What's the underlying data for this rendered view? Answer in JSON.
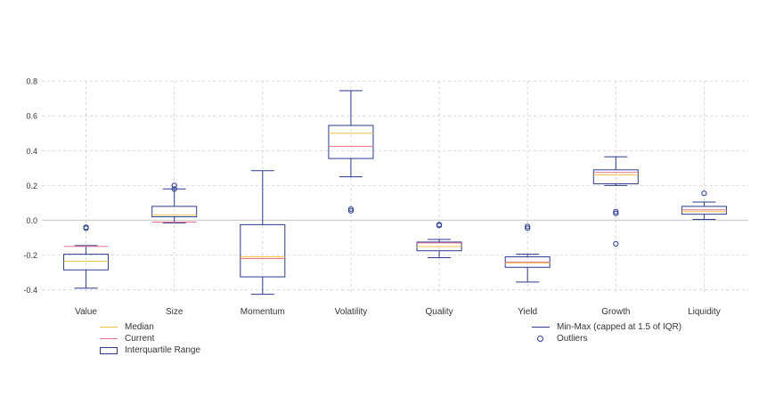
{
  "chart_data": {
    "type": "box",
    "categories": [
      "Value",
      "Size",
      "Momentum",
      "Volatility",
      "Quality",
      "Yield",
      "Growth",
      "Liquidity"
    ],
    "boxes": [
      {
        "whisker_low": -0.39,
        "q1": -0.285,
        "median": -0.235,
        "q3": -0.195,
        "whisker_high": -0.145,
        "current": -0.15,
        "outliers": [
          -0.04,
          -0.045
        ]
      },
      {
        "whisker_low": -0.015,
        "q1": 0.02,
        "median": 0.03,
        "q3": 0.08,
        "whisker_high": 0.18,
        "current": -0.01,
        "outliers": [
          0.18,
          0.2
        ]
      },
      {
        "whisker_low": -0.425,
        "q1": -0.325,
        "median": -0.21,
        "q3": -0.025,
        "whisker_high": 0.285,
        "current": -0.22,
        "outliers": []
      },
      {
        "whisker_low": 0.25,
        "q1": 0.355,
        "median": 0.5,
        "q3": 0.545,
        "whisker_high": 0.745,
        "current": 0.425,
        "outliers": [
          0.055,
          0.065
        ]
      },
      {
        "whisker_low": -0.215,
        "q1": -0.175,
        "median": -0.15,
        "q3": -0.125,
        "whisker_high": -0.11,
        "current": -0.13,
        "outliers": [
          -0.025,
          -0.03
        ]
      },
      {
        "whisker_low": -0.355,
        "q1": -0.27,
        "median": -0.245,
        "q3": -0.21,
        "whisker_high": -0.195,
        "current": -0.24,
        "outliers": [
          -0.035,
          -0.045
        ]
      },
      {
        "whisker_low": 0.2,
        "q1": 0.21,
        "median": 0.26,
        "q3": 0.29,
        "whisker_high": 0.365,
        "current": 0.275,
        "outliers": [
          0.04,
          0.05,
          -0.135
        ]
      },
      {
        "whisker_low": 0.005,
        "q1": 0.035,
        "median": 0.05,
        "q3": 0.08,
        "whisker_high": 0.105,
        "current": 0.06,
        "outliers": [
          0.155
        ]
      }
    ],
    "y_ticks": [
      "0.8",
      "0.6",
      "0.4",
      "0.2",
      "0.0",
      "-0.2",
      "-0.4"
    ],
    "y_tick_values": [
      0.8,
      0.6,
      0.4,
      0.2,
      0.0,
      -0.2,
      -0.4
    ],
    "ylim": [
      -0.42,
      0.8
    ],
    "grid": true,
    "legend_placement": "bottom",
    "colors": {
      "box": "#2a3a8f",
      "median": "#f0c048",
      "current": "#e8708a",
      "grid": "#cfcfcf",
      "zero_line": "#cfcfcf"
    }
  },
  "legend": {
    "median": "Median",
    "current": "Current",
    "iqr": "Interquartile Range",
    "minmax": "Min-Max (capped at 1.5 of IQR)",
    "outliers": "Outliers"
  }
}
